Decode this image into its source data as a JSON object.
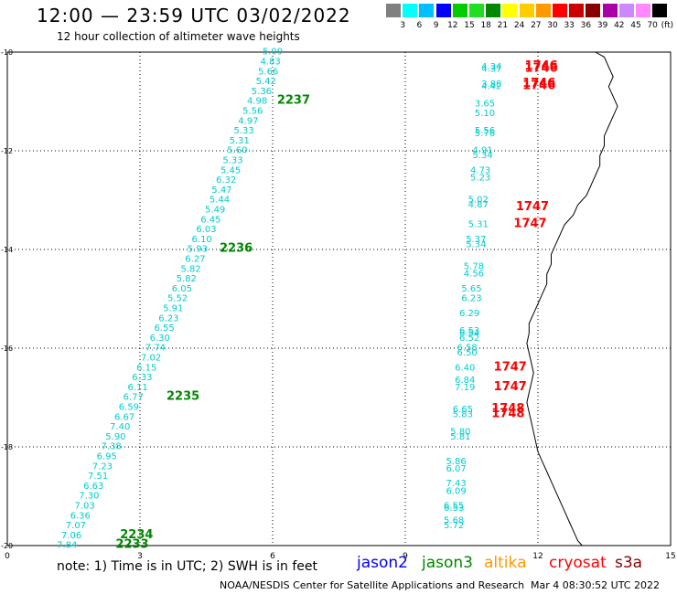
{
  "header": {
    "title": "12:00 — 23:59 UTC 03/02/2022",
    "subtitle": "12 hour collection of altimeter wave heights"
  },
  "legend": {
    "colors": [
      "#808080",
      "#00ffff",
      "#00bfff",
      "#0000ff",
      "#00cc00",
      "#22dd22",
      "#008800",
      "#ffff00",
      "#ffcc00",
      "#ff9900",
      "#ff0000",
      "#cc0000",
      "#880000",
      "#aa00aa",
      "#cc88ff",
      "#ff88ff",
      "#000000"
    ],
    "ticks": [
      "3",
      "6",
      "9",
      "12",
      "15",
      "18",
      "21",
      "24",
      "27",
      "30",
      "33",
      "36",
      "39",
      "42",
      "45",
      "70"
    ],
    "unit": "(ft)"
  },
  "axes": {
    "x_ticks": [
      "0",
      "3",
      "6",
      "9",
      "12",
      "15"
    ],
    "y_ticks": [
      "-10",
      "-12",
      "-14",
      "-16",
      "-18",
      "-20"
    ],
    "x_range": [
      0,
      15
    ],
    "y_range": [
      -20,
      -10
    ]
  },
  "satellites": {
    "jason2": {
      "label": "jason2",
      "color": "#0000ff"
    },
    "jason3": {
      "label": "jason3",
      "color": "#008800"
    },
    "altika": {
      "label": "altika",
      "color": "#ff9900"
    },
    "cryosat": {
      "label": "cryosat",
      "color": "#ff0000"
    },
    "s3a": {
      "label": "s3a",
      "color": "#880000"
    }
  },
  "note": "note:  1) Time is in UTC;  2) SWH is in feet",
  "credit": "NOAA/NESDIS Center for Satellite Applications and Research",
  "timestamp": "Mar  4 08:30:52 UTC 2022",
  "chart_data": {
    "type": "scatter",
    "title": "12:00 — 23:59 UTC 03/02/2022",
    "subtitle": "12 hour collection of altimeter wave heights",
    "xlim": [
      0,
      15
    ],
    "ylim": [
      -20,
      -10
    ],
    "track_a": [
      {
        "x": 6.0,
        "y": -10.05,
        "v": "5.09"
      },
      {
        "x": 5.95,
        "y": -10.25,
        "v": "4.83"
      },
      {
        "x": 5.9,
        "y": -10.45,
        "v": "5.66"
      },
      {
        "x": 5.85,
        "y": -10.65,
        "v": "5.42"
      },
      {
        "x": 5.75,
        "y": -10.85,
        "v": "5.36"
      },
      {
        "x": 5.65,
        "y": -11.05,
        "v": "4.98"
      },
      {
        "x": 5.55,
        "y": -11.25,
        "v": "5.56"
      },
      {
        "x": 5.45,
        "y": -11.45,
        "v": "4.97"
      },
      {
        "x": 5.35,
        "y": -11.65,
        "v": "5.33"
      },
      {
        "x": 5.25,
        "y": -11.85,
        "v": "5.31"
      },
      {
        "x": 5.2,
        "y": -12.05,
        "v": "5.60"
      },
      {
        "x": 5.1,
        "y": -12.25,
        "v": "5.33"
      },
      {
        "x": 5.05,
        "y": -12.45,
        "v": "5.45"
      },
      {
        "x": 4.95,
        "y": -12.65,
        "v": "6.32"
      },
      {
        "x": 4.85,
        "y": -12.85,
        "v": "5.47"
      },
      {
        "x": 4.8,
        "y": -13.05,
        "v": "5.44"
      },
      {
        "x": 4.7,
        "y": -13.25,
        "v": "5.49"
      },
      {
        "x": 4.6,
        "y": -13.45,
        "v": "6.45"
      },
      {
        "x": 4.5,
        "y": -13.65,
        "v": "6.03"
      },
      {
        "x": 4.4,
        "y": -13.85,
        "v": "6.10"
      },
      {
        "x": 4.3,
        "y": -14.05,
        "v": "5.93"
      },
      {
        "x": 4.25,
        "y": -14.25,
        "v": "6.27"
      },
      {
        "x": 4.15,
        "y": -14.45,
        "v": "5.82"
      },
      {
        "x": 4.05,
        "y": -14.65,
        "v": "5.82"
      },
      {
        "x": 3.95,
        "y": -14.85,
        "v": "6.05"
      },
      {
        "x": 3.85,
        "y": -15.05,
        "v": "5.52"
      },
      {
        "x": 3.75,
        "y": -15.25,
        "v": "5.91"
      },
      {
        "x": 3.65,
        "y": -15.45,
        "v": "6.23"
      },
      {
        "x": 3.55,
        "y": -15.65,
        "v": "6.55"
      },
      {
        "x": 3.45,
        "y": -15.85,
        "v": "6.30"
      },
      {
        "x": 3.35,
        "y": -16.05,
        "v": "7.74"
      },
      {
        "x": 3.25,
        "y": -16.25,
        "v": "7.02"
      },
      {
        "x": 3.15,
        "y": -16.45,
        "v": "6.15"
      },
      {
        "x": 3.05,
        "y": -16.65,
        "v": "6.33"
      },
      {
        "x": 2.95,
        "y": -16.85,
        "v": "6.11"
      },
      {
        "x": 2.85,
        "y": -17.05,
        "v": "6.77"
      },
      {
        "x": 2.75,
        "y": -17.25,
        "v": "6.59"
      },
      {
        "x": 2.65,
        "y": -17.45,
        "v": "6.67"
      },
      {
        "x": 2.55,
        "y": -17.65,
        "v": "7.40"
      },
      {
        "x": 2.45,
        "y": -17.85,
        "v": "5.90"
      },
      {
        "x": 2.35,
        "y": -18.05,
        "v": "7.38"
      },
      {
        "x": 2.25,
        "y": -18.25,
        "v": "6.95"
      },
      {
        "x": 2.15,
        "y": -18.45,
        "v": "7.23"
      },
      {
        "x": 2.05,
        "y": -18.65,
        "v": "7.51"
      },
      {
        "x": 1.95,
        "y": -18.85,
        "v": "6.63"
      },
      {
        "x": 1.85,
        "y": -19.05,
        "v": "7.30"
      },
      {
        "x": 1.75,
        "y": -19.25,
        "v": "7.03"
      },
      {
        "x": 1.65,
        "y": -19.45,
        "v": "6.36"
      },
      {
        "x": 1.55,
        "y": -19.65,
        "v": "7.07"
      },
      {
        "x": 1.45,
        "y": -19.85,
        "v": "7.06"
      },
      {
        "x": 1.35,
        "y": -20.05,
        "v": "7.84"
      }
    ],
    "track_b": [
      {
        "x": 10.95,
        "y": -10.35,
        "v": "4.34"
      },
      {
        "x": 10.95,
        "y": -10.4,
        "v": "4.37"
      },
      {
        "x": 10.95,
        "y": -10.7,
        "v": "3.88"
      },
      {
        "x": 10.95,
        "y": -10.75,
        "v": "4.42"
      },
      {
        "x": 10.8,
        "y": -11.1,
        "v": "3.65"
      },
      {
        "x": 10.8,
        "y": -11.3,
        "v": "5.10"
      },
      {
        "x": 10.8,
        "y": -11.65,
        "v": "5.56"
      },
      {
        "x": 10.8,
        "y": -11.7,
        "v": "5.76"
      },
      {
        "x": 10.75,
        "y": -12.05,
        "v": "4.91"
      },
      {
        "x": 10.75,
        "y": -12.15,
        "v": "5.34"
      },
      {
        "x": 10.7,
        "y": -12.45,
        "v": "4.73"
      },
      {
        "x": 10.7,
        "y": -12.6,
        "v": "5.23"
      },
      {
        "x": 10.65,
        "y": -13.05,
        "v": "5.02"
      },
      {
        "x": 10.65,
        "y": -13.15,
        "v": "4.87"
      },
      {
        "x": 10.65,
        "y": -13.55,
        "v": "5.31"
      },
      {
        "x": 10.6,
        "y": -13.85,
        "v": "5.37"
      },
      {
        "x": 10.6,
        "y": -13.95,
        "v": "5.34"
      },
      {
        "x": 10.55,
        "y": -14.4,
        "v": "5.78"
      },
      {
        "x": 10.55,
        "y": -14.55,
        "v": "4.56"
      },
      {
        "x": 10.5,
        "y": -14.85,
        "v": "5.65"
      },
      {
        "x": 10.5,
        "y": -15.05,
        "v": "6.23"
      },
      {
        "x": 10.45,
        "y": -15.35,
        "v": "6.29"
      },
      {
        "x": 10.45,
        "y": -15.7,
        "v": "6.53"
      },
      {
        "x": 10.45,
        "y": -15.75,
        "v": "6.54"
      },
      {
        "x": 10.45,
        "y": -15.85,
        "v": "6.52"
      },
      {
        "x": 10.4,
        "y": -16.05,
        "v": "6.58"
      },
      {
        "x": 10.4,
        "y": -16.15,
        "v": "6.50"
      },
      {
        "x": 10.35,
        "y": -16.45,
        "v": "6.40"
      },
      {
        "x": 10.35,
        "y": -16.7,
        "v": "6.84"
      },
      {
        "x": 10.35,
        "y": -16.85,
        "v": "7.19"
      },
      {
        "x": 10.3,
        "y": -17.3,
        "v": "6.65"
      },
      {
        "x": 10.3,
        "y": -17.4,
        "v": "5.83"
      },
      {
        "x": 10.25,
        "y": -17.75,
        "v": "5.80"
      },
      {
        "x": 10.25,
        "y": -17.85,
        "v": "5.81"
      },
      {
        "x": 10.15,
        "y": -18.35,
        "v": "5.86"
      },
      {
        "x": 10.15,
        "y": -18.5,
        "v": "6.07"
      },
      {
        "x": 10.15,
        "y": -18.8,
        "v": "7.43"
      },
      {
        "x": 10.15,
        "y": -18.95,
        "v": "6.09"
      },
      {
        "x": 10.1,
        "y": -19.25,
        "v": "6.55"
      },
      {
        "x": 10.1,
        "y": -19.3,
        "v": "6.53"
      },
      {
        "x": 10.1,
        "y": -19.55,
        "v": "5.68"
      },
      {
        "x": 10.1,
        "y": -19.65,
        "v": "5.72"
      }
    ],
    "time_labels": [
      {
        "x": 6.1,
        "y": -11.05,
        "t": "2237",
        "sat": "jason3"
      },
      {
        "x": 4.8,
        "y": -14.05,
        "t": "2236",
        "sat": "jason3"
      },
      {
        "x": 3.6,
        "y": -17.05,
        "t": "2235",
        "sat": "jason3"
      },
      {
        "x": 2.55,
        "y": -19.85,
        "t": "2234",
        "sat": "jason3"
      },
      {
        "x": 2.45,
        "y": -20.05,
        "t": "2233",
        "sat": "jason3"
      },
      {
        "x": 11.7,
        "y": -10.35,
        "t": "1746",
        "sat": "cryosat"
      },
      {
        "x": 11.7,
        "y": -10.4,
        "t": "1746",
        "sat": "cryosat"
      },
      {
        "x": 11.65,
        "y": -10.7,
        "t": "1746",
        "sat": "cryosat"
      },
      {
        "x": 11.65,
        "y": -10.75,
        "t": "1746",
        "sat": "cryosat"
      },
      {
        "x": 11.5,
        "y": -13.2,
        "t": "1747",
        "sat": "cryosat"
      },
      {
        "x": 11.45,
        "y": -13.55,
        "t": "1747",
        "sat": "cryosat"
      },
      {
        "x": 11.0,
        "y": -16.45,
        "t": "1747",
        "sat": "cryosat"
      },
      {
        "x": 11.0,
        "y": -16.85,
        "t": "1747",
        "sat": "cryosat"
      },
      {
        "x": 10.95,
        "y": -17.3,
        "t": "1748",
        "sat": "cryosat"
      },
      {
        "x": 10.95,
        "y": -17.4,
        "t": "1748",
        "sat": "cryosat"
      }
    ],
    "coastline": [
      [
        13.3,
        -10.0
      ],
      [
        13.5,
        -10.1
      ],
      [
        13.6,
        -10.3
      ],
      [
        13.7,
        -10.5
      ],
      [
        13.6,
        -10.7
      ],
      [
        13.7,
        -10.9
      ],
      [
        13.8,
        -11.1
      ],
      [
        13.7,
        -11.3
      ],
      [
        13.6,
        -11.5
      ],
      [
        13.5,
        -11.7
      ],
      [
        13.5,
        -11.9
      ],
      [
        13.4,
        -12.1
      ],
      [
        13.4,
        -12.3
      ],
      [
        13.3,
        -12.5
      ],
      [
        13.2,
        -12.7
      ],
      [
        13.1,
        -12.9
      ],
      [
        12.9,
        -13.1
      ],
      [
        12.8,
        -13.3
      ],
      [
        12.6,
        -13.5
      ],
      [
        12.5,
        -13.7
      ],
      [
        12.4,
        -13.9
      ],
      [
        12.3,
        -14.1
      ],
      [
        12.3,
        -14.3
      ],
      [
        12.2,
        -14.5
      ],
      [
        12.2,
        -14.7
      ],
      [
        12.1,
        -14.9
      ],
      [
        12.0,
        -15.1
      ],
      [
        11.9,
        -15.3
      ],
      [
        11.8,
        -15.5
      ],
      [
        11.8,
        -15.7
      ],
      [
        11.75,
        -15.9
      ],
      [
        11.8,
        -16.1
      ],
      [
        11.85,
        -16.3
      ],
      [
        11.9,
        -16.5
      ],
      [
        11.85,
        -16.7
      ],
      [
        11.8,
        -16.9
      ],
      [
        11.75,
        -17.1
      ],
      [
        11.8,
        -17.3
      ],
      [
        11.85,
        -17.5
      ],
      [
        11.9,
        -17.7
      ],
      [
        11.95,
        -17.9
      ],
      [
        12.0,
        -18.1
      ],
      [
        12.1,
        -18.3
      ],
      [
        12.2,
        -18.5
      ],
      [
        12.3,
        -18.7
      ],
      [
        12.4,
        -18.9
      ],
      [
        12.5,
        -19.1
      ],
      [
        12.6,
        -19.3
      ],
      [
        12.7,
        -19.5
      ],
      [
        12.8,
        -19.7
      ],
      [
        12.9,
        -19.9
      ],
      [
        13.0,
        -20.0
      ]
    ]
  }
}
